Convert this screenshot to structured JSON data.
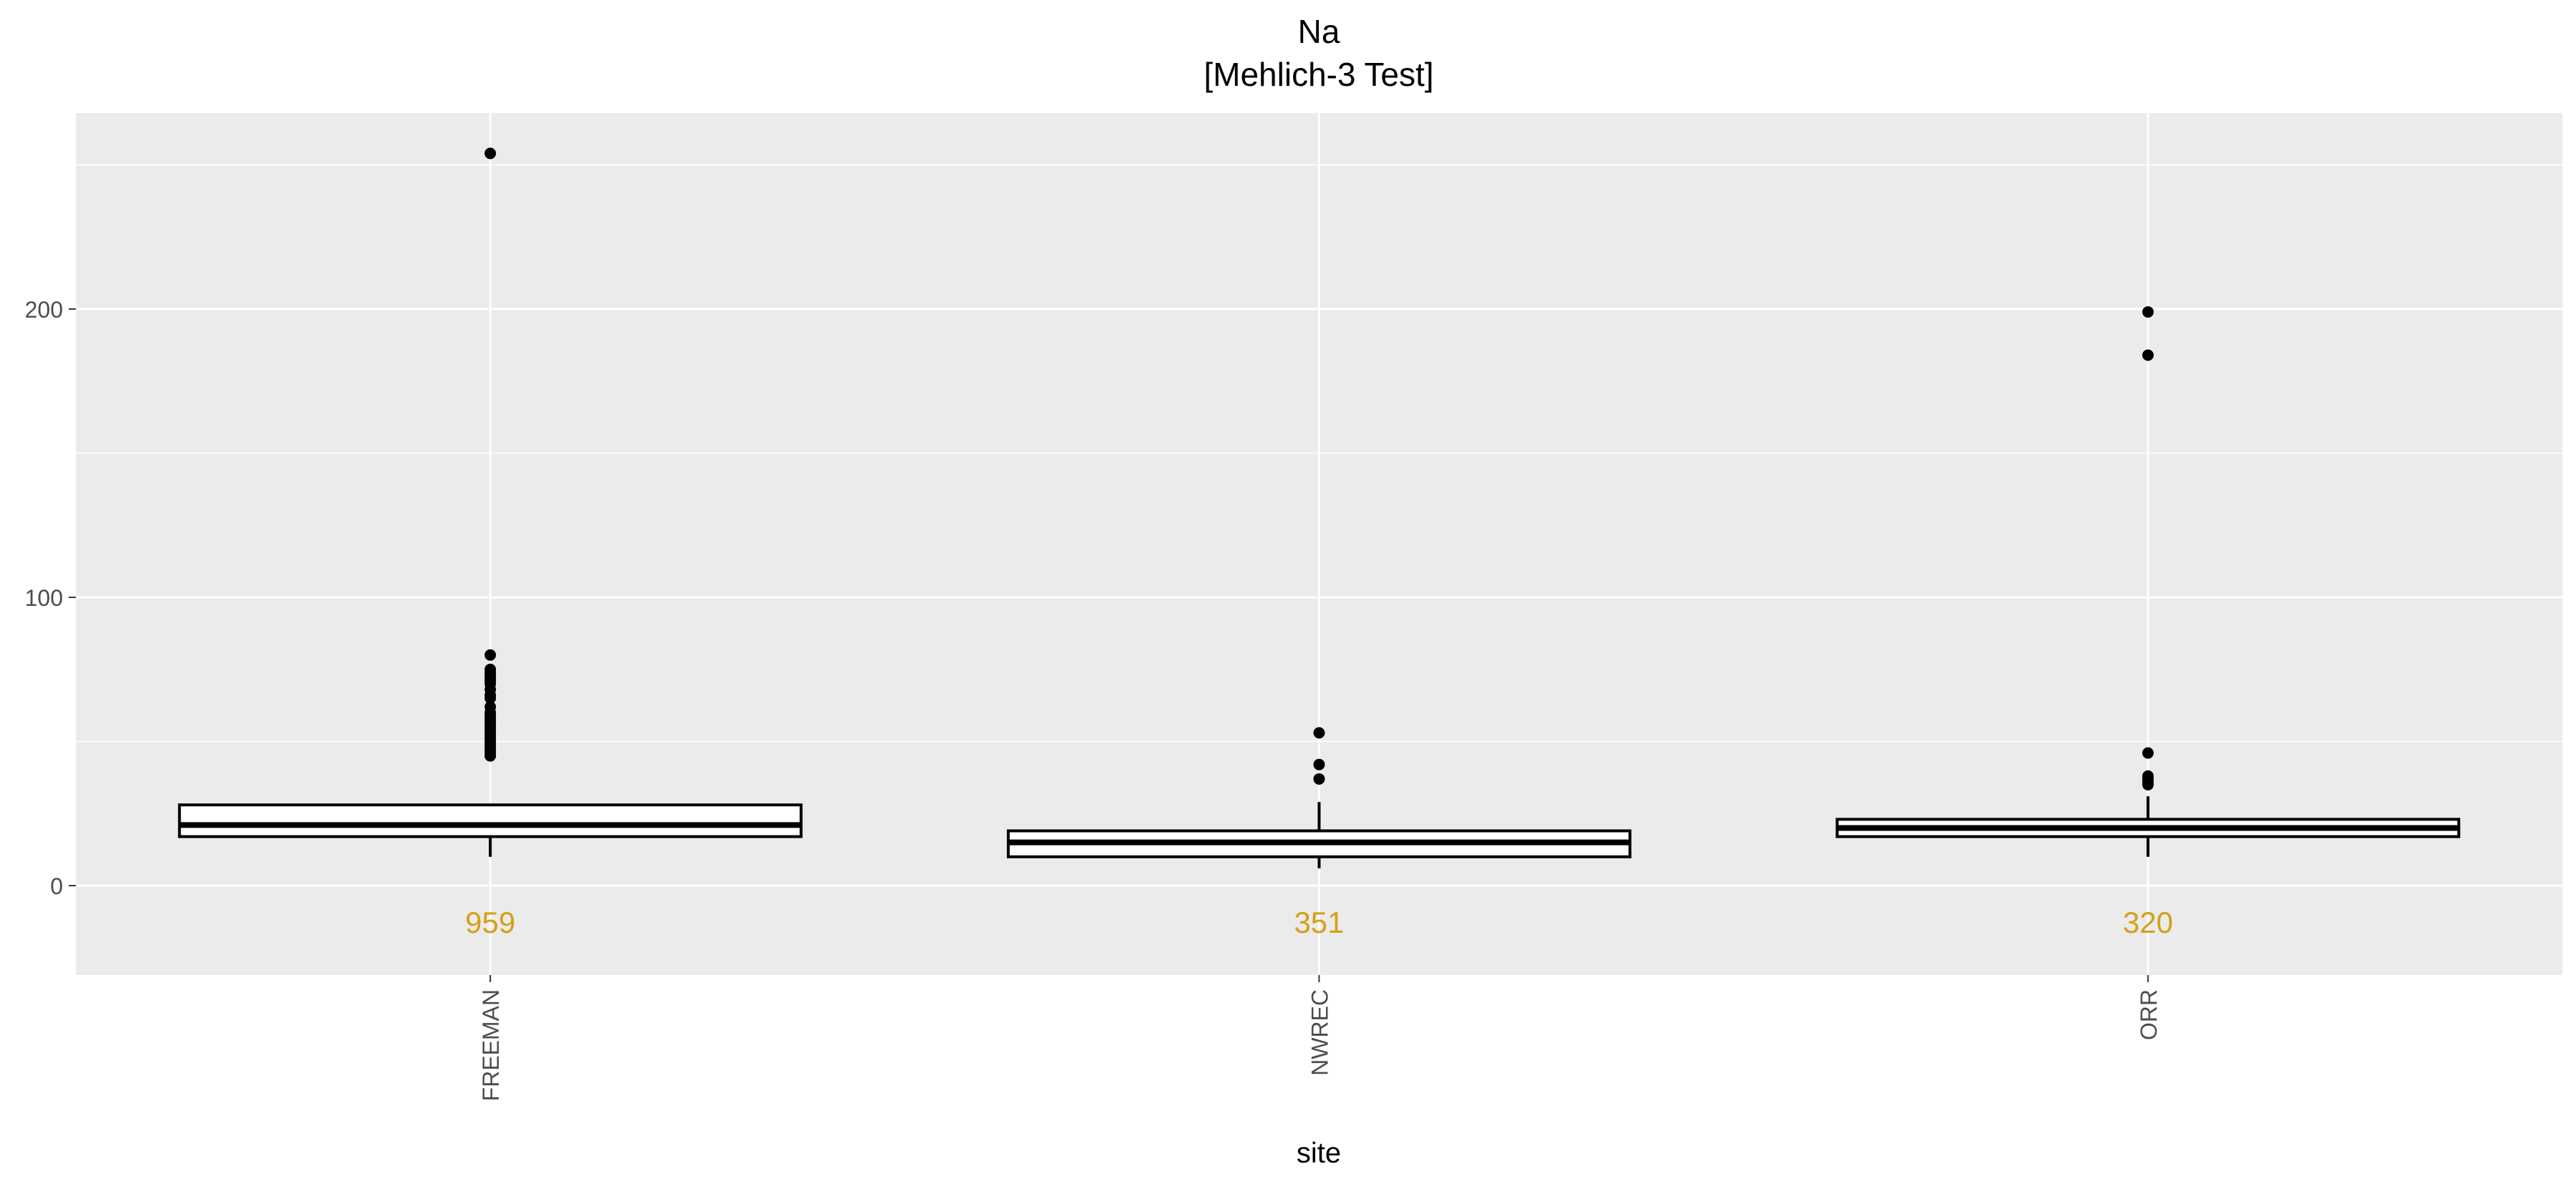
{
  "chart_data": {
    "type": "boxplot",
    "title": "Na",
    "subtitle": "[Mehlich-3 Test]",
    "xlabel": "site",
    "ylabel": "",
    "ylim": [
      -31,
      268
    ],
    "yticks": [
      0,
      100,
      200
    ],
    "grid": true,
    "colors": {
      "panel": "#EBEBEB",
      "grid": "#FFFFFF",
      "box_stroke": "#000000",
      "box_fill": "#FFFFFF",
      "count_label": "#D4A017",
      "tick_text": "#4D4D4D"
    },
    "categories": [
      "FREEMAN",
      "NWREC",
      "ORR"
    ],
    "boxes": [
      {
        "site": "FREEMAN",
        "n_label": "959",
        "lower_whisker": 10,
        "q1": 17,
        "median": 21,
        "q3": 28,
        "upper_whisker": 28,
        "outliers": [
          45,
          46,
          47,
          48,
          49,
          50,
          51,
          52,
          53,
          54,
          55,
          56,
          57,
          58,
          59,
          60,
          62,
          65,
          66,
          68,
          70,
          71,
          72,
          73,
          74,
          75,
          80,
          254
        ]
      },
      {
        "site": "NWREC",
        "n_label": "351",
        "lower_whisker": 6,
        "q1": 10,
        "median": 15,
        "q3": 19,
        "upper_whisker": 29,
        "outliers": [
          37,
          42,
          53
        ]
      },
      {
        "site": "ORR",
        "n_label": "320",
        "lower_whisker": 10,
        "q1": 17,
        "median": 20,
        "q3": 23,
        "upper_whisker": 31,
        "outliers": [
          35,
          36,
          37,
          38,
          46,
          184,
          199
        ]
      }
    ]
  }
}
